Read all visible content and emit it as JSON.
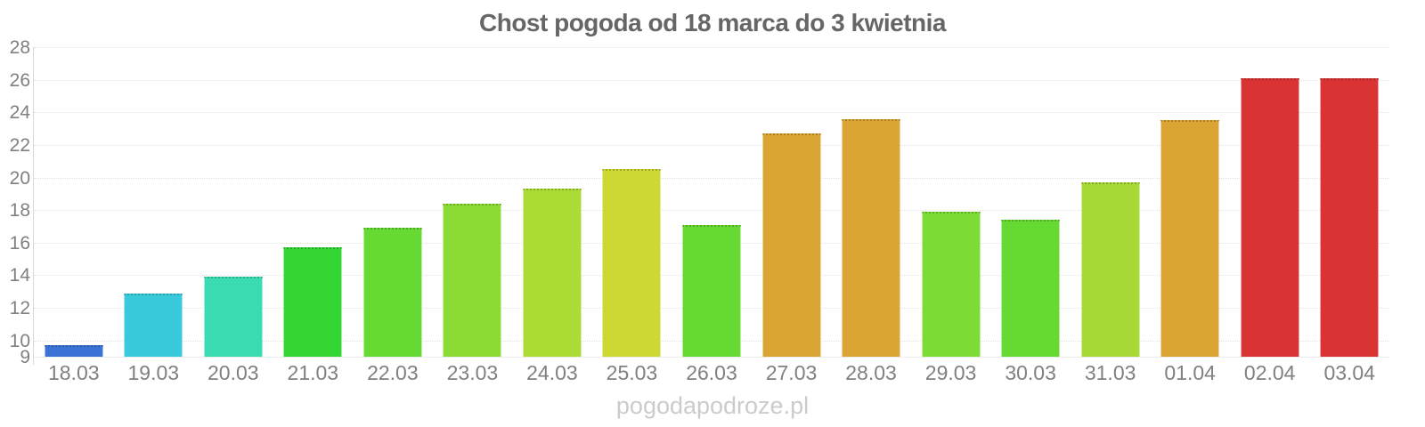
{
  "title": "Chost pogoda od 18 marca do 3 kwietnia",
  "watermark": "pogodapodroze.pl",
  "palette": {
    "background": "#ffffff",
    "title_color": "#666666",
    "axis_label_color": "#808080",
    "gridline_color": "#e2e2e2",
    "axis_line_color": "#d8d8d8",
    "watermark_color": "#cbcbcb"
  },
  "chart_data": {
    "type": "bar",
    "title": "Chost pogoda od 18 marca do 3 kwietnia",
    "xlabel": "",
    "ylabel": "",
    "ylim": [
      9,
      28
    ],
    "yticks": [
      9,
      10,
      12,
      14,
      16,
      18,
      20,
      22,
      24,
      26,
      28
    ],
    "grid": "horizontal-dotted",
    "legend": "none",
    "categories": [
      "18.03",
      "19.03",
      "20.03",
      "21.03",
      "22.03",
      "23.03",
      "24.03",
      "25.03",
      "26.03",
      "27.03",
      "28.03",
      "29.03",
      "30.03",
      "31.03",
      "01.04",
      "02.04",
      "03.04"
    ],
    "values": [
      9.7,
      12.9,
      13.9,
      15.7,
      16.9,
      18.4,
      19.3,
      20.5,
      17.1,
      22.7,
      23.6,
      17.9,
      17.4,
      19.7,
      23.5,
      26.1,
      26.1
    ],
    "bar_colors": [
      "#3B72D6",
      "#38C9DB",
      "#3BDBB2",
      "#33D633",
      "#66D933",
      "#8CDB35",
      "#ABDB35",
      "#CDD835",
      "#66D933",
      "#DBA533",
      "#DBA533",
      "#7CDB35",
      "#66D933",
      "#A6D936",
      "#DBA533",
      "#D93333",
      "#D93333"
    ]
  }
}
